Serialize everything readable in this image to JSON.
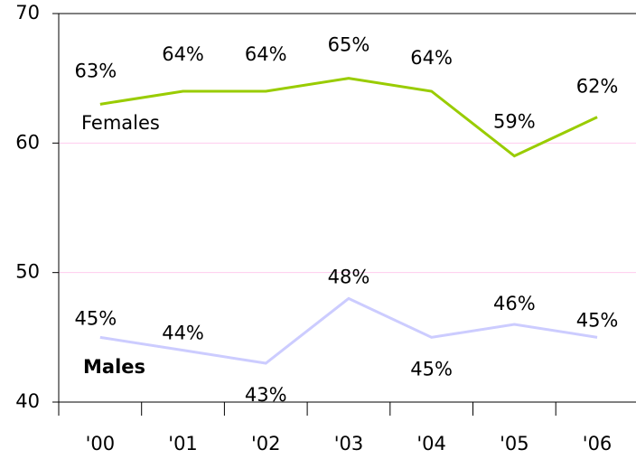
{
  "chart_data": {
    "type": "line",
    "categories": [
      "'00",
      "'01",
      "'02",
      "'03",
      "'04",
      "'05",
      "'06"
    ],
    "series": [
      {
        "name": "Females",
        "color": "#99cc00",
        "label_color": "#99cc00",
        "values": [
          63,
          64,
          64,
          65,
          64,
          59,
          62
        ],
        "value_labels": [
          "63%",
          "64%",
          "64%",
          "65%",
          "64%",
          "59%",
          "62%"
        ]
      },
      {
        "name": "Males",
        "color": "#ccccff",
        "label_color": "#3333cc",
        "values": [
          45,
          44,
          43,
          48,
          45,
          46,
          45
        ],
        "value_labels": [
          "45%",
          "44%",
          "43%",
          "48%",
          "45%",
          "46%",
          "45%"
        ]
      }
    ],
    "ylim": [
      40,
      70
    ],
    "yticks": [
      40,
      50,
      60,
      70
    ],
    "grid": true,
    "grid_color": "#ffccee"
  }
}
